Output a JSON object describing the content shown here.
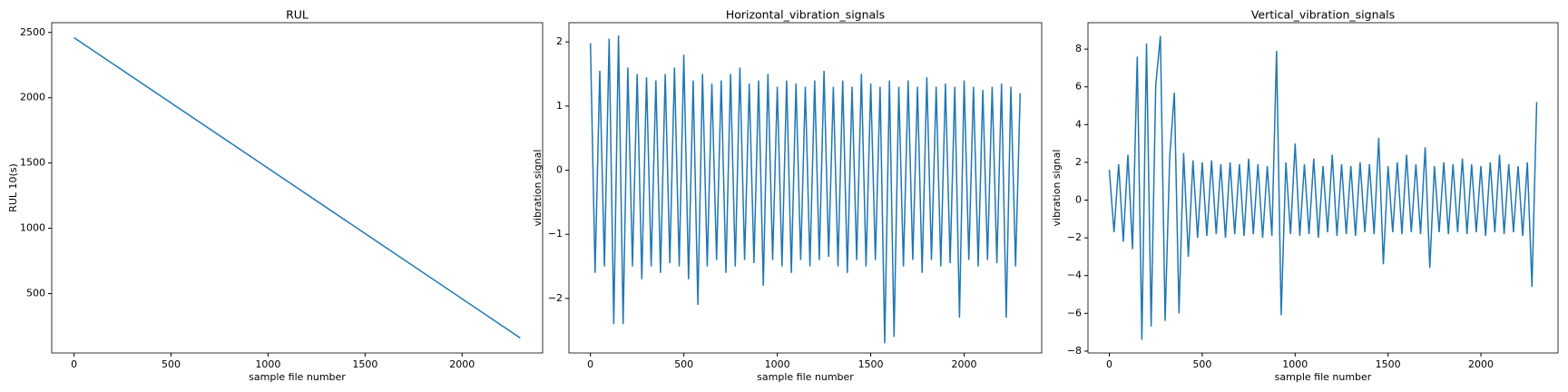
{
  "chart_data": [
    {
      "type": "line",
      "title": "RUL",
      "xlabel": "sample file number",
      "ylabel": "RUL 10(s)",
      "color": "#1f77b4",
      "x": [
        0,
        2300
      ],
      "values": [
        2460,
        160
      ],
      "xlim": [
        -115,
        2415
      ],
      "xticks": [
        0,
        500,
        1000,
        1500,
        2000
      ],
      "ylim": [
        45,
        2575
      ],
      "yticks": [
        500,
        1000,
        1500,
        2000,
        2500
      ]
    },
    {
      "type": "line",
      "title": "Horizontal_vibration_signals",
      "xlabel": "sample file number",
      "ylabel": "vibration signal",
      "color": "#1f77b4",
      "x": [
        0,
        25,
        50,
        75,
        100,
        125,
        150,
        175,
        200,
        225,
        250,
        275,
        300,
        325,
        350,
        375,
        400,
        425,
        450,
        475,
        500,
        525,
        550,
        575,
        600,
        625,
        650,
        675,
        700,
        725,
        750,
        775,
        800,
        825,
        850,
        875,
        900,
        925,
        950,
        975,
        1000,
        1025,
        1050,
        1075,
        1100,
        1125,
        1150,
        1175,
        1200,
        1225,
        1250,
        1275,
        1300,
        1325,
        1350,
        1375,
        1400,
        1425,
        1450,
        1475,
        1500,
        1525,
        1550,
        1575,
        1600,
        1625,
        1650,
        1675,
        1700,
        1725,
        1750,
        1775,
        1800,
        1825,
        1850,
        1875,
        1900,
        1925,
        1950,
        1975,
        2000,
        2025,
        2050,
        2075,
        2100,
        2125,
        2150,
        2175,
        2200,
        2225,
        2250,
        2275,
        2300
      ],
      "values": [
        1.98,
        -1.6,
        1.55,
        -1.5,
        2.05,
        -2.4,
        2.1,
        -2.4,
        1.6,
        -1.5,
        1.5,
        -1.7,
        1.45,
        -1.5,
        1.4,
        -1.6,
        1.5,
        -1.45,
        1.6,
        -1.5,
        1.8,
        -1.7,
        1.4,
        -2.1,
        1.5,
        -1.5,
        1.35,
        -1.4,
        1.4,
        -1.6,
        1.5,
        -1.5,
        1.6,
        -1.4,
        1.35,
        -1.45,
        1.4,
        -1.8,
        1.5,
        -1.4,
        1.3,
        -1.5,
        1.4,
        -1.6,
        1.35,
        -1.4,
        1.3,
        -1.5,
        1.4,
        -1.4,
        1.55,
        -1.35,
        1.3,
        -1.5,
        1.4,
        -1.6,
        1.3,
        -1.4,
        1.5,
        -1.5,
        1.35,
        -1.4,
        1.3,
        -2.7,
        1.4,
        -2.6,
        1.3,
        -1.5,
        1.4,
        -1.4,
        1.3,
        -1.6,
        1.45,
        -1.4,
        1.3,
        -1.5,
        1.35,
        -1.45,
        1.3,
        -2.3,
        1.4,
        -1.4,
        1.3,
        -1.5,
        1.25,
        -1.4,
        1.3,
        -1.45,
        1.35,
        -2.3,
        1.3,
        -1.5,
        1.2
      ],
      "xlim": [
        -115,
        2415
      ],
      "xticks": [
        0,
        500,
        1000,
        1500,
        2000
      ],
      "ylim": [
        -2.85,
        2.3
      ],
      "yticks": [
        {
          "value": -2,
          "label": "−2"
        },
        {
          "value": -1,
          "label": "−1"
        },
        0,
        1,
        2
      ]
    },
    {
      "type": "line",
      "title": "Vertical_vibration_signals",
      "xlabel": "sample file number",
      "ylabel": "vibration signal",
      "color": "#1f77b4",
      "x": [
        0,
        25,
        50,
        75,
        100,
        125,
        150,
        175,
        200,
        225,
        250,
        275,
        300,
        325,
        350,
        375,
        400,
        425,
        450,
        475,
        500,
        525,
        550,
        575,
        600,
        625,
        650,
        675,
        700,
        725,
        750,
        775,
        800,
        825,
        850,
        875,
        900,
        925,
        950,
        975,
        1000,
        1025,
        1050,
        1075,
        1100,
        1125,
        1150,
        1175,
        1200,
        1225,
        1250,
        1275,
        1300,
        1325,
        1350,
        1375,
        1400,
        1425,
        1450,
        1475,
        1500,
        1525,
        1550,
        1575,
        1600,
        1625,
        1650,
        1675,
        1700,
        1725,
        1750,
        1775,
        1800,
        1825,
        1850,
        1875,
        1900,
        1925,
        1950,
        1975,
        2000,
        2025,
        2050,
        2075,
        2100,
        2125,
        2150,
        2175,
        2200,
        2225,
        2250,
        2275,
        2300
      ],
      "values": [
        1.6,
        -1.7,
        1.9,
        -2.2,
        2.4,
        -2.6,
        7.6,
        -7.4,
        8.3,
        -6.7,
        6.1,
        8.7,
        -6.4,
        2.3,
        5.7,
        -6.0,
        2.5,
        -3.0,
        2.1,
        -2.0,
        2.0,
        -1.9,
        2.1,
        -1.8,
        1.9,
        -2.0,
        2.0,
        -1.8,
        1.9,
        -1.9,
        2.2,
        -1.8,
        1.9,
        -2.0,
        1.8,
        -1.9,
        7.9,
        -6.1,
        2.0,
        -1.8,
        3.0,
        -1.9,
        1.9,
        -1.8,
        2.2,
        -2.0,
        1.8,
        -1.7,
        2.4,
        -1.9,
        1.9,
        -1.8,
        1.8,
        -1.9,
        2.0,
        -1.7,
        1.9,
        -1.8,
        3.3,
        -3.4,
        1.8,
        -1.7,
        2.0,
        -1.8,
        2.4,
        -1.7,
        1.9,
        -1.8,
        2.8,
        -3.6,
        1.8,
        -1.7,
        2.0,
        -1.8,
        1.9,
        -1.7,
        2.2,
        -1.8,
        1.9,
        -1.7,
        1.8,
        -1.9,
        2.0,
        -1.7,
        2.4,
        -1.8,
        1.9,
        -1.7,
        1.8,
        -1.9,
        2.0,
        -4.6,
        5.2
      ],
      "xlim": [
        -115,
        2415
      ],
      "xticks": [
        0,
        500,
        1000,
        1500,
        2000
      ],
      "ylim": [
        -8.1,
        9.4
      ],
      "yticks": [
        {
          "value": -8,
          "label": "−8"
        },
        {
          "value": -6,
          "label": "−6"
        },
        {
          "value": -4,
          "label": "−4"
        },
        {
          "value": -2,
          "label": "−2"
        },
        0,
        2,
        4,
        6,
        8
      ]
    }
  ]
}
